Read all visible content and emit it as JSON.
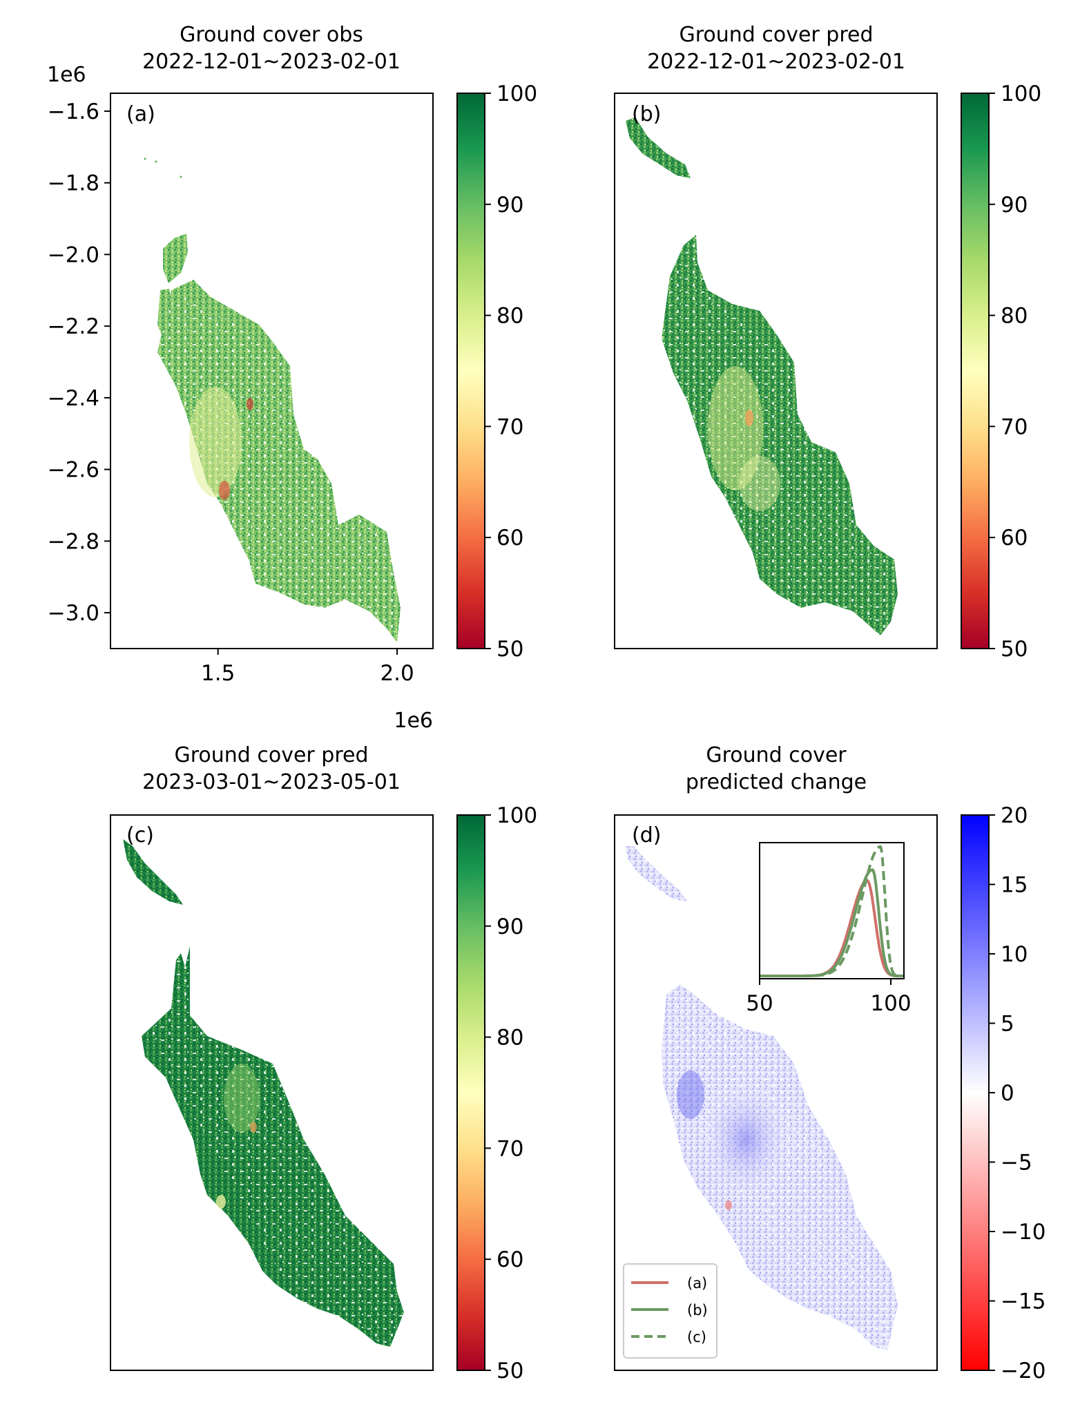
{
  "colors": {
    "rdylgn_stops": [
      "#a50026",
      "#d73027",
      "#f46d43",
      "#fdae61",
      "#fee08b",
      "#ffffbf",
      "#d9ef8b",
      "#a6d96a",
      "#66bd63",
      "#1a9850",
      "#006837"
    ],
    "bwr_stops": [
      "#ff0000",
      "#ffffff",
      "#0000ff"
    ],
    "curve_a": "#d0706a",
    "curve_bc": "#6b9962"
  },
  "chart_data": [
    {
      "type": "heatmap",
      "panel_label": "(a)",
      "title_line1": "Ground cover obs",
      "title_line2": "2022-12-01~2023-02-01",
      "colormap": "RdYlGn",
      "clim": [
        50,
        100
      ],
      "colorbar_ticks": [
        "50",
        "60",
        "70",
        "80",
        "90",
        "100"
      ],
      "xlim": [
        1.2,
        2.1
      ],
      "ylim": [
        -3.1,
        -1.55
      ],
      "x_ticks": [
        "1.5",
        "2.0"
      ],
      "y_ticks": [
        "−1.6",
        "−1.8",
        "−2.0",
        "−2.2",
        "−2.4",
        "−2.6",
        "−2.8",
        "−3.0"
      ],
      "x_offset": "1e6",
      "y_offset": "1e6"
    },
    {
      "type": "heatmap",
      "panel_label": "(b)",
      "title_line1": "Ground cover pred",
      "title_line2": "2022-12-01~2023-02-01",
      "colormap": "RdYlGn",
      "clim": [
        50,
        100
      ],
      "colorbar_ticks": [
        "50",
        "60",
        "70",
        "80",
        "90",
        "100"
      ]
    },
    {
      "type": "heatmap",
      "panel_label": "(c)",
      "title_line1": "Ground cover pred",
      "title_line2": "2023-03-01~2023-05-01",
      "colormap": "RdYlGn",
      "clim": [
        50,
        100
      ],
      "colorbar_ticks": [
        "50",
        "60",
        "70",
        "80",
        "90",
        "100"
      ]
    },
    {
      "type": "heatmap",
      "panel_label": "(d)",
      "title_line1": "Ground cover",
      "title_line2": "predicted change",
      "colormap": "bwr_r",
      "clim": [
        -20,
        20
      ],
      "colorbar_ticks": [
        "−20",
        "−15",
        "−10",
        "−5",
        "0",
        "5",
        "10",
        "15",
        "20"
      ],
      "legend": [
        "(a)",
        "(b)",
        "(c)"
      ],
      "legend_position": "lower-left",
      "inset": {
        "type": "line",
        "xlim": [
          50,
          105
        ],
        "x_ticks": [
          "50",
          "100"
        ],
        "series": [
          {
            "name": "(a)",
            "mode": 91,
            "peak": 0.7,
            "style": "solid"
          },
          {
            "name": "(b)",
            "mode": 93,
            "peak": 0.78,
            "style": "solid"
          },
          {
            "name": "(c)",
            "mode": 96,
            "peak": 0.95,
            "style": "dashed"
          }
        ]
      }
    }
  ]
}
